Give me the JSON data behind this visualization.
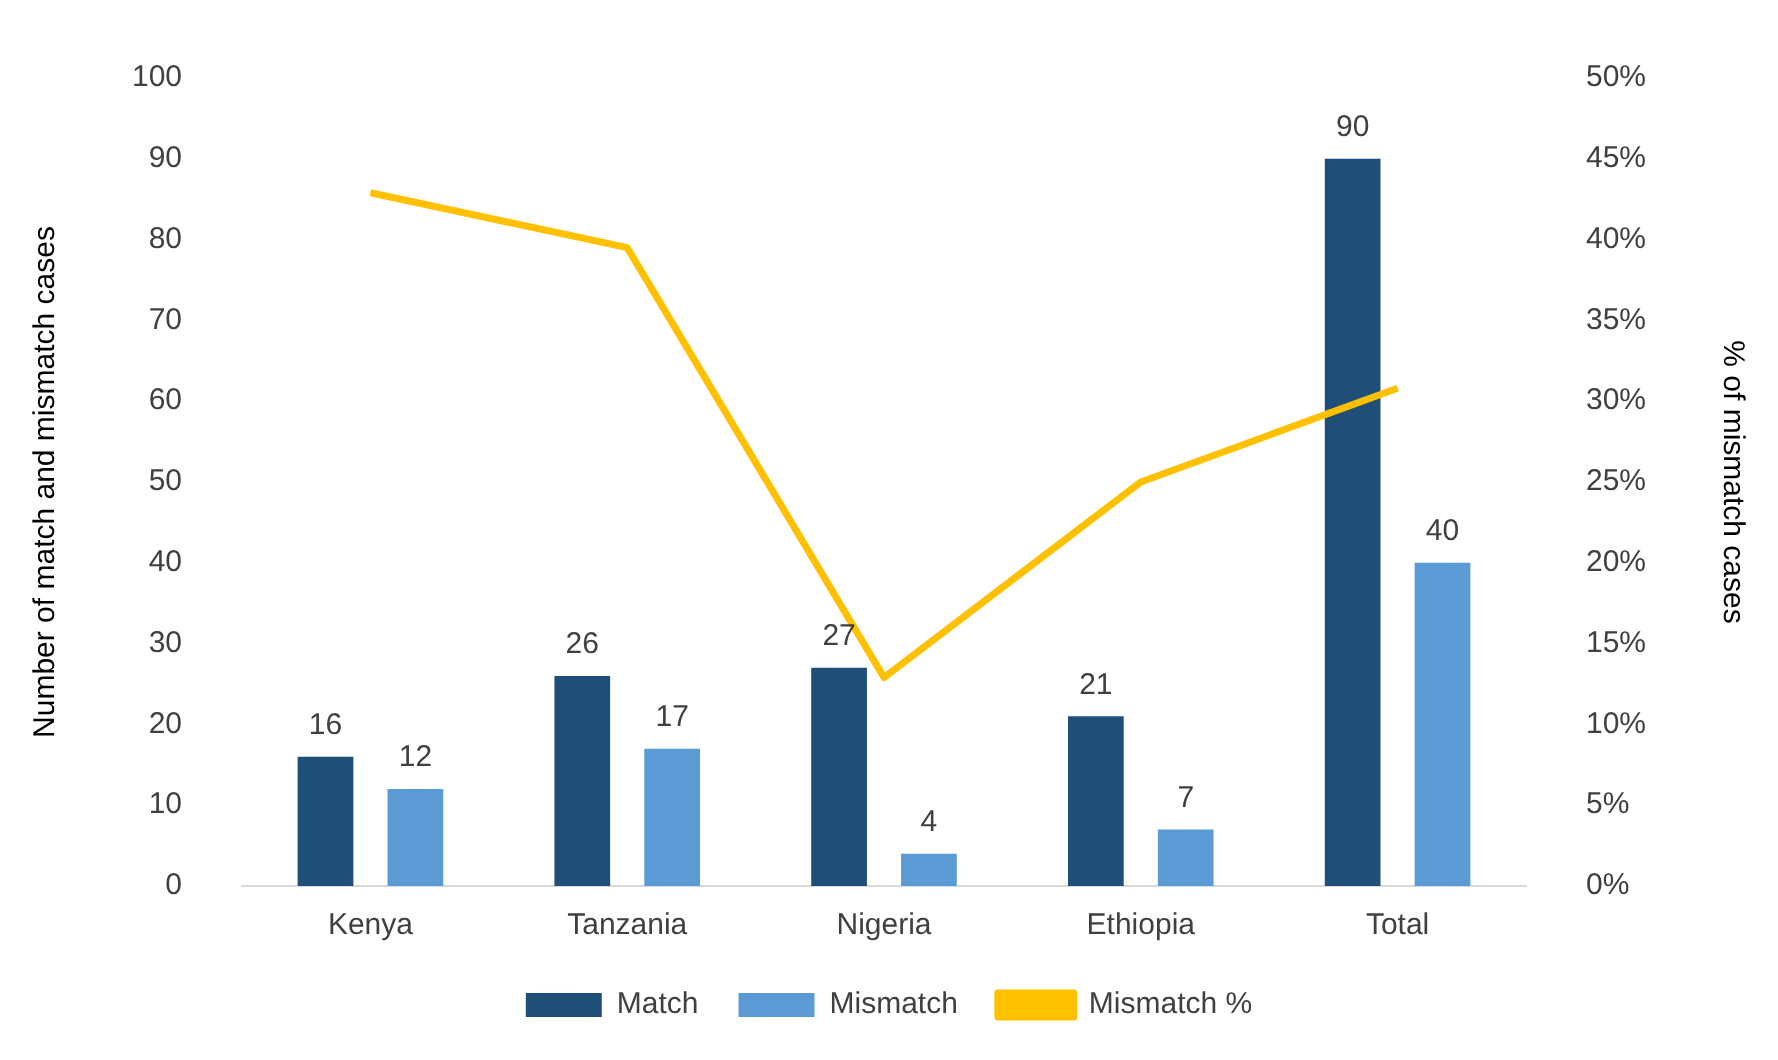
{
  "chart_data": {
    "type": "bar",
    "categories": [
      "Kenya",
      "Tanzania",
      "Nigeria",
      "Ethiopia",
      "Total"
    ],
    "ylabel": "Number of match and mismatch cases",
    "y2label": "% of mismatch cases",
    "ylim": [
      0,
      100
    ],
    "yticks": [
      0,
      10,
      20,
      30,
      40,
      50,
      60,
      70,
      80,
      90,
      100
    ],
    "y2lim": [
      0,
      50
    ],
    "y2ticks": [
      {
        "value": 0,
        "label": "0%"
      },
      {
        "value": 5,
        "label": "5%"
      },
      {
        "value": 10,
        "label": "10%"
      },
      {
        "value": 15,
        "label": "15%"
      },
      {
        "value": 20,
        "label": "20%"
      },
      {
        "value": 25,
        "label": "25%"
      },
      {
        "value": 30,
        "label": "30%"
      },
      {
        "value": 35,
        "label": "35%"
      },
      {
        "value": 40,
        "label": "40%"
      },
      {
        "value": 45,
        "label": "45%"
      },
      {
        "value": 50,
        "label": "50%"
      }
    ],
    "series": [
      {
        "name": "Match",
        "color": "#1f4e79",
        "values": [
          16,
          26,
          27,
          21,
          90
        ],
        "value_labels": [
          "16",
          "26",
          "27",
          "21",
          "90"
        ]
      },
      {
        "name": "Mismatch",
        "color": "#5b9bd5",
        "values": [
          12,
          17,
          4,
          7,
          40
        ],
        "value_labels": [
          "12",
          "17",
          "4",
          "7",
          "40"
        ]
      },
      {
        "name": "Mismatch %",
        "type": "line",
        "axis": "y2",
        "color": "#ffc000",
        "values": [
          42.9,
          39.5,
          12.9,
          25,
          30.8
        ]
      }
    ],
    "grid": false,
    "legend": "bottom",
    "marker": "none"
  }
}
